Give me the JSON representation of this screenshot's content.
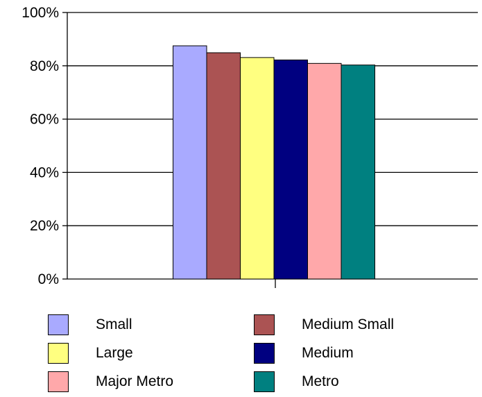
{
  "chart_data": {
    "type": "bar",
    "categories": [
      ""
    ],
    "series": [
      {
        "name": "Small",
        "values": [
          87.5
        ],
        "color": "#a9aaff"
      },
      {
        "name": "Medium Small",
        "values": [
          84.9
        ],
        "color": "#ab5353"
      },
      {
        "name": "Large",
        "values": [
          83.1
        ],
        "color": "#ffff80"
      },
      {
        "name": "Medium",
        "values": [
          82.2
        ],
        "color": "#000080"
      },
      {
        "name": "Major Metro",
        "values": [
          80.9
        ],
        "color": "#ffa8aa"
      },
      {
        "name": "Metro",
        "values": [
          80.3
        ],
        "color": "#008080"
      }
    ],
    "title": "",
    "xlabel": "",
    "ylabel": "",
    "ylim": [
      0,
      100
    ],
    "yticks": [
      "0%",
      "20%",
      "40%",
      "60%",
      "80%",
      "100%"
    ],
    "grid": true,
    "legend_position": "bottom"
  }
}
